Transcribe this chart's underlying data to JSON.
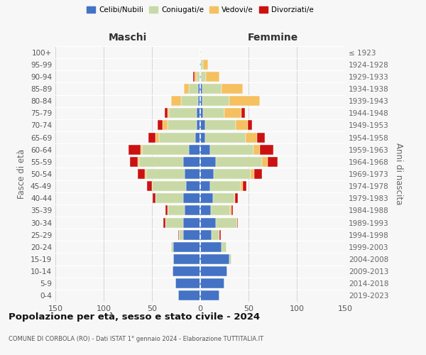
{
  "age_groups": [
    "0-4",
    "5-9",
    "10-14",
    "15-19",
    "20-24",
    "25-29",
    "30-34",
    "35-39",
    "40-44",
    "45-49",
    "50-54",
    "55-59",
    "60-64",
    "65-69",
    "70-74",
    "75-79",
    "80-84",
    "85-89",
    "90-94",
    "95-99",
    "100+"
  ],
  "birth_years": [
    "2019-2023",
    "2014-2018",
    "2009-2013",
    "2004-2008",
    "1999-2003",
    "1994-1998",
    "1989-1993",
    "1984-1988",
    "1979-1983",
    "1974-1978",
    "1969-1973",
    "1964-1968",
    "1959-1963",
    "1954-1958",
    "1949-1953",
    "1944-1948",
    "1939-1943",
    "1934-1938",
    "1929-1933",
    "1924-1928",
    "≤ 1923"
  ],
  "maschi": {
    "celibe": [
      23,
      26,
      29,
      28,
      28,
      18,
      18,
      16,
      18,
      15,
      16,
      18,
      12,
      5,
      4,
      4,
      2,
      2,
      1,
      1,
      0
    ],
    "coniugato": [
      0,
      0,
      0,
      0,
      2,
      4,
      18,
      18,
      28,
      35,
      40,
      45,
      48,
      38,
      30,
      28,
      18,
      10,
      3,
      0,
      0
    ],
    "vedovo": [
      0,
      0,
      0,
      0,
      0,
      0,
      0,
      0,
      0,
      0,
      1,
      2,
      2,
      3,
      5,
      2,
      10,
      5,
      2,
      0,
      0
    ],
    "divorziato": [
      0,
      0,
      0,
      0,
      0,
      1,
      2,
      2,
      3,
      5,
      8,
      8,
      12,
      8,
      5,
      3,
      0,
      0,
      1,
      0,
      0
    ]
  },
  "femmine": {
    "nubile": [
      20,
      25,
      28,
      30,
      22,
      12,
      16,
      11,
      13,
      10,
      14,
      16,
      10,
      5,
      5,
      3,
      2,
      2,
      1,
      1,
      0
    ],
    "coniugata": [
      0,
      0,
      0,
      2,
      5,
      8,
      22,
      20,
      22,
      32,
      38,
      48,
      45,
      42,
      32,
      22,
      28,
      20,
      5,
      2,
      0
    ],
    "vedova": [
      0,
      0,
      0,
      0,
      0,
      0,
      0,
      1,
      1,
      2,
      4,
      6,
      7,
      12,
      12,
      18,
      32,
      22,
      14,
      5,
      1
    ],
    "divorziata": [
      0,
      0,
      0,
      0,
      0,
      1,
      1,
      2,
      3,
      4,
      8,
      10,
      14,
      8,
      5,
      3,
      0,
      0,
      0,
      0,
      0
    ]
  },
  "colors": {
    "celibe": "#4472C4",
    "coniugato": "#c8d9a5",
    "vedovo": "#F5C060",
    "divorziato": "#CC1111"
  },
  "title": "Popolazione per età, sesso e stato civile - 2024",
  "subtitle": "COMUNE DI CORBOLA (RO) - Dati ISTAT 1° gennaio 2024 - Elaborazione TUTTITALIA.IT",
  "xlabel_left": "Maschi",
  "xlabel_right": "Femmine",
  "ylabel_left": "Fasce di età",
  "ylabel_right": "Anni di nascita",
  "xlim": 150,
  "bg_color": "#f7f7f7",
  "grid_color": "#d0d0d0"
}
